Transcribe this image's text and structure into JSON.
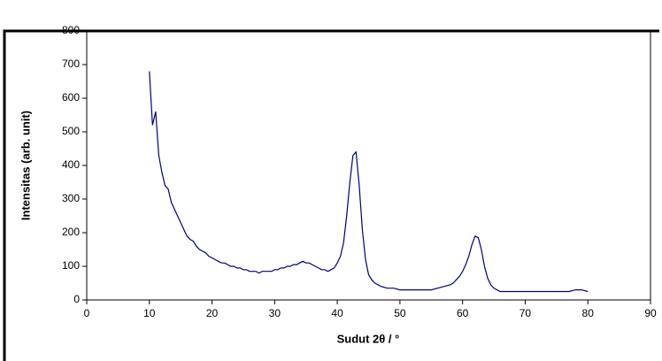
{
  "chart_data": {
    "type": "line",
    "x_label": "Sudut 2θ / °",
    "y_label": "Intensitas (arb. unit)",
    "xlim": [
      0,
      90
    ],
    "xticks": [
      0,
      10,
      20,
      30,
      40,
      50,
      60,
      70,
      80,
      90
    ],
    "ylim": [
      0,
      800
    ],
    "yticks": [
      0,
      100,
      200,
      300,
      400,
      500,
      600,
      700,
      800
    ],
    "series": [
      {
        "color": "#000080",
        "x": [
          10,
          10.5,
          11,
          11.5,
          12,
          12.5,
          13,
          13.5,
          14,
          14.5,
          15,
          15.5,
          16,
          16.5,
          17,
          17.5,
          18,
          18.5,
          19,
          19.5,
          20,
          20.5,
          21,
          21.5,
          22,
          22.5,
          23,
          23.5,
          24,
          24.5,
          25,
          25.5,
          26,
          26.5,
          27,
          27.5,
          28,
          28.5,
          29,
          29.5,
          30,
          30.5,
          31,
          31.5,
          32,
          32.5,
          33,
          33.5,
          34,
          34.5,
          35,
          35.5,
          36,
          36.5,
          37,
          37.5,
          38,
          38.5,
          39,
          39.5,
          40,
          40.5,
          41,
          41.5,
          42,
          42.5,
          43,
          43.5,
          44,
          44.5,
          45,
          45.5,
          46,
          47,
          48,
          49,
          50,
          51,
          52,
          53,
          54,
          55,
          56,
          57,
          58,
          58.5,
          59,
          59.5,
          60,
          60.5,
          61,
          61.5,
          62,
          62.5,
          63,
          63.5,
          64,
          64.5,
          65,
          66,
          67,
          68,
          69,
          70,
          71,
          72,
          73,
          74,
          75,
          76,
          77,
          78,
          79,
          80
        ],
        "values": [
          680,
          520,
          560,
          430,
          380,
          340,
          330,
          290,
          270,
          250,
          230,
          210,
          190,
          180,
          175,
          160,
          150,
          145,
          140,
          130,
          125,
          120,
          115,
          110,
          110,
          105,
          100,
          100,
          95,
          95,
          90,
          90,
          85,
          85,
          85,
          80,
          85,
          85,
          85,
          85,
          90,
          90,
          95,
          95,
          100,
          100,
          105,
          105,
          110,
          115,
          110,
          110,
          105,
          100,
          95,
          90,
          90,
          85,
          90,
          95,
          110,
          130,
          170,
          250,
          350,
          430,
          440,
          340,
          210,
          120,
          75,
          60,
          50,
          40,
          35,
          35,
          30,
          30,
          30,
          30,
          30,
          30,
          35,
          40,
          45,
          50,
          60,
          70,
          85,
          105,
          130,
          165,
          190,
          185,
          150,
          100,
          65,
          45,
          35,
          25,
          25,
          25,
          25,
          25,
          25,
          25,
          25,
          25,
          25,
          25,
          25,
          30,
          30,
          25
        ]
      }
    ]
  }
}
